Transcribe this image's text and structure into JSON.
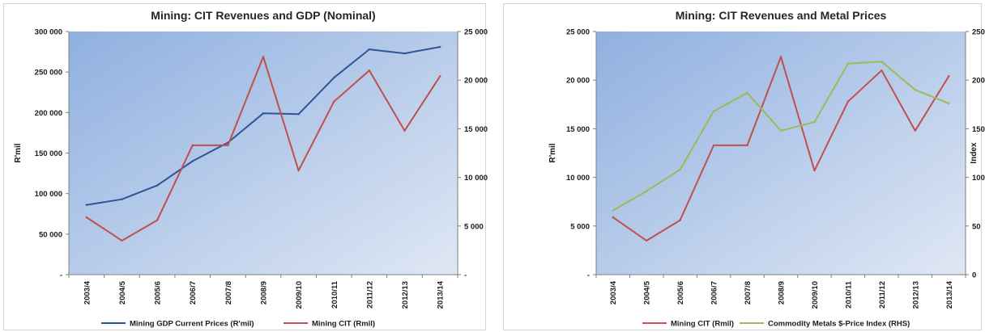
{
  "chart_data": [
    {
      "type": "line",
      "title": "Mining: CIT Revenues and GDP (Nominal)",
      "categories": [
        "2003/4",
        "2004/5",
        "2005/6",
        "2006/7",
        "2007/8",
        "2008/9",
        "2009/10",
        "2010/11",
        "2011/12",
        "2012/13",
        "2013/14"
      ],
      "ylabel": "R'mil",
      "ylabel_right": "",
      "ylim": [
        0,
        300000
      ],
      "ylim_right": [
        0,
        25000
      ],
      "yticks": [
        "-",
        "50 000",
        "100 000",
        "150 000",
        "200 000",
        "250 000",
        "300 000"
      ],
      "yticks_right": [
        "-",
        "5 000",
        "10 000",
        "15 000",
        "20 000",
        "25 000"
      ],
      "series": [
        {
          "name": "Mining GDP Current Prices (R'mil)",
          "axis": "left",
          "color": "#2f5597",
          "values": [
            86000,
            93000,
            110000,
            140000,
            163000,
            199000,
            198000,
            243000,
            278000,
            273000,
            281000
          ]
        },
        {
          "name": "Mining CIT (Rmil)",
          "axis": "right",
          "color": "#c0504d",
          "values": [
            5900,
            3500,
            5600,
            13300,
            13300,
            22400,
            10700,
            17800,
            21000,
            14800,
            20400
          ]
        }
      ],
      "plot_background": [
        "#8fb0e0",
        "#dfe7f4"
      ]
    },
    {
      "type": "line",
      "title": "Mining: CIT Revenues and Metal Prices",
      "categories": [
        "2003/4",
        "2004/5",
        "2005/6",
        "2006/7",
        "2007/8",
        "2008/9",
        "2009/10",
        "2010/11",
        "2011/12",
        "2012/13",
        "2013/14"
      ],
      "ylabel": "R'mil",
      "ylabel_right": "Index",
      "ylim": [
        0,
        25000
      ],
      "ylim_right": [
        0,
        250
      ],
      "yticks": [
        "-",
        "5 000",
        "10 000",
        "15 000",
        "20 000",
        "25 000"
      ],
      "yticks_right": [
        "0",
        "50",
        "100",
        "150",
        "200",
        "250"
      ],
      "series": [
        {
          "name": "Mining CIT (Rmil)",
          "axis": "left",
          "color": "#c0504d",
          "values": [
            5900,
            3500,
            5600,
            13300,
            13300,
            22400,
            10700,
            17800,
            21000,
            14800,
            20400
          ]
        },
        {
          "name": "Commodity Metals $-Price Index (RHS)",
          "axis": "right",
          "color": "#9bbb59",
          "values": [
            66,
            86,
            108,
            168,
            187,
            148,
            157,
            217,
            219,
            190,
            176
          ]
        }
      ],
      "plot_background": [
        "#8fb0e0",
        "#dfe7f4"
      ]
    }
  ]
}
